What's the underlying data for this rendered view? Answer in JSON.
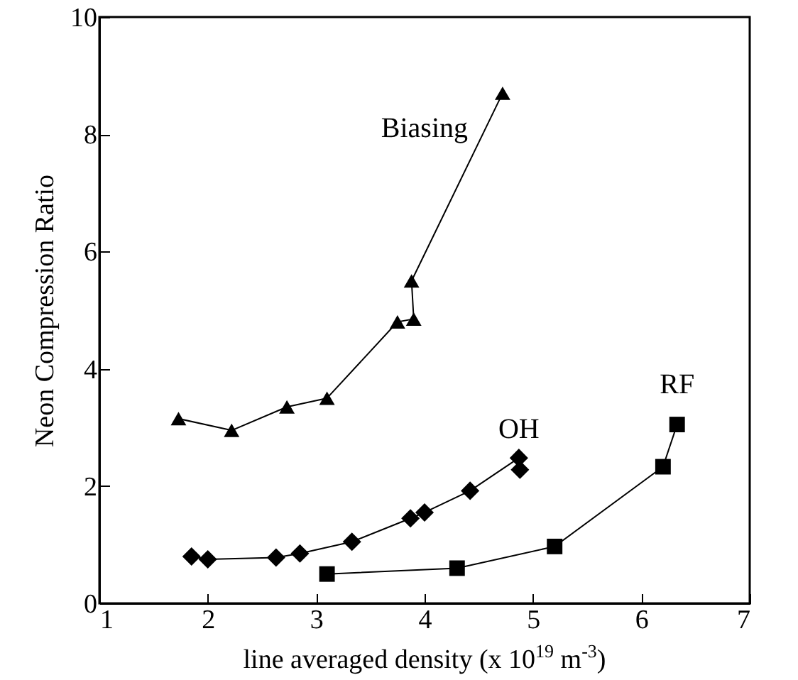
{
  "chart_data": {
    "type": "line",
    "xlabel": "line averaged density (x 10$^{19}$ m$^{-3}$)",
    "ylabel": "Neon Compression Ratio",
    "xlim": [
      1,
      7
    ],
    "xticks": [
      1,
      2,
      3,
      4,
      5,
      6,
      7
    ],
    "ylim": [
      0,
      10
    ],
    "yticks": [
      0,
      2,
      4,
      6,
      8,
      10
    ],
    "grid": false,
    "series": [
      {
        "name": "Biasing",
        "color": "#000000",
        "marker": "triangle",
        "x": [
          1.73,
          2.22,
          2.73,
          3.1,
          3.75,
          3.9,
          3.88,
          4.72
        ],
        "values": [
          3.15,
          2.95,
          3.35,
          3.5,
          4.8,
          4.85,
          5.5,
          8.7
        ]
      },
      {
        "name": "OH",
        "color": "#000000",
        "marker": "diamond",
        "x": [
          1.85,
          2.0,
          2.63,
          2.85,
          3.33,
          3.87,
          4.0,
          4.42,
          4.87,
          4.88
        ],
        "values": [
          0.8,
          0.75,
          0.78,
          0.85,
          1.05,
          1.45,
          1.55,
          1.92,
          2.48,
          2.28
        ]
      },
      {
        "name": "RF",
        "color": "#000000",
        "marker": "square",
        "x": [
          3.1,
          4.3,
          5.2,
          6.2,
          6.33
        ],
        "values": [
          0.5,
          0.6,
          0.97,
          2.33,
          3.05
        ]
      }
    ]
  }
}
